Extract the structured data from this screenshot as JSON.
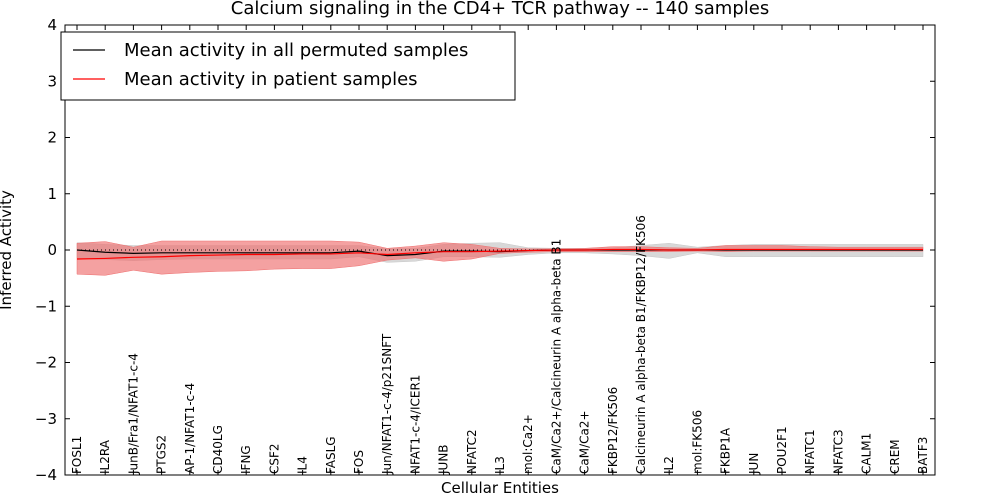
{
  "chart_data": {
    "type": "line",
    "title": "Calcium signaling in the CD4+ TCR pathway -- 140 samples",
    "xlabel": "Cellular Entities",
    "ylabel": "Inferred Activity",
    "ylim": [
      -4,
      4
    ],
    "yticks": [
      "−4",
      "−3",
      "−2",
      "−1",
      "0",
      "1",
      "2",
      "3",
      "4"
    ],
    "legend_position": "top-left",
    "categories": [
      "FOSL1",
      "IL2RA",
      "JunB/Fra1/NFAT1-c-4",
      "PTGS2",
      "AP-1/NFAT1-c-4",
      "CD40LG",
      "IFNG",
      "CSF2",
      "IL4",
      "FASLG",
      "FOS",
      "Jun/NFAT1-c-4/p21SNFT",
      "NFAT1-c-4/ICER1",
      "JUNB",
      "NFATC2",
      "IL3",
      "mol:Ca2+",
      "CaM/Ca2+/Calcineurin A alpha-beta B1",
      "CaM/Ca2+",
      "FKBP12/FK506",
      "Calcineurin A alpha-beta B1/FKBP12/FK506",
      "IL2",
      "mol:FK506",
      "FKBP1A",
      "JUN",
      "POU2F1",
      "NFATC1",
      "NFATC3",
      "CALM1",
      "CREM",
      "BATF3"
    ],
    "series": [
      {
        "name": "Mean activity in all permuted samples",
        "color": "#000000",
        "band_color": "#c8c8c8",
        "values": [
          0.0,
          -0.04,
          -0.06,
          -0.05,
          -0.05,
          -0.05,
          -0.05,
          -0.05,
          -0.05,
          -0.05,
          -0.02,
          -0.1,
          -0.08,
          -0.02,
          -0.02,
          -0.03,
          -0.01,
          0.0,
          0.0,
          0.0,
          0.0,
          0.0,
          0.0,
          0.0,
          0.0,
          0.0,
          0.0,
          0.0,
          0.0,
          0.0,
          0.0
        ],
        "lower": [
          -0.15,
          -0.17,
          -0.19,
          -0.17,
          -0.16,
          -0.16,
          -0.16,
          -0.16,
          -0.16,
          -0.16,
          -0.12,
          -0.22,
          -0.2,
          -0.12,
          -0.12,
          -0.13,
          -0.08,
          -0.05,
          -0.05,
          -0.07,
          -0.1,
          -0.15,
          -0.05,
          -0.12,
          -0.12,
          -0.12,
          -0.12,
          -0.12,
          -0.12,
          -0.12,
          -0.12
        ],
        "upper": [
          0.13,
          0.1,
          0.08,
          0.08,
          0.08,
          0.08,
          0.08,
          0.08,
          0.08,
          0.08,
          0.08,
          0.02,
          0.03,
          0.1,
          0.12,
          0.13,
          0.04,
          0.03,
          0.03,
          0.04,
          0.08,
          0.12,
          0.05,
          0.08,
          0.1,
          0.1,
          0.1,
          0.1,
          0.1,
          0.1,
          0.1
        ]
      },
      {
        "name": "Mean activity in patient samples",
        "color": "#ff0000",
        "band_color": "#ee6f6f",
        "values": [
          -0.16,
          -0.15,
          -0.13,
          -0.12,
          -0.1,
          -0.09,
          -0.08,
          -0.08,
          -0.07,
          -0.07,
          -0.05,
          -0.08,
          -0.05,
          -0.03,
          -0.03,
          -0.02,
          -0.01,
          0.0,
          0.0,
          0.01,
          0.01,
          0.0,
          0.0,
          0.01,
          0.01,
          0.01,
          0.01,
          0.01,
          0.01,
          0.01,
          0.01
        ],
        "lower": [
          -0.43,
          -0.45,
          -0.36,
          -0.43,
          -0.4,
          -0.38,
          -0.37,
          -0.34,
          -0.33,
          -0.33,
          -0.28,
          -0.18,
          -0.14,
          -0.2,
          -0.16,
          -0.06,
          -0.04,
          -0.03,
          -0.03,
          -0.03,
          -0.03,
          -0.03,
          -0.02,
          -0.03,
          -0.02,
          -0.02,
          -0.02,
          -0.02,
          -0.02,
          -0.02,
          -0.02
        ],
        "upper": [
          0.12,
          0.15,
          0.05,
          0.16,
          0.16,
          0.16,
          0.16,
          0.16,
          0.16,
          0.16,
          0.14,
          0.03,
          0.07,
          0.13,
          0.1,
          0.03,
          0.02,
          0.02,
          0.03,
          0.06,
          0.06,
          0.04,
          0.03,
          0.08,
          0.08,
          0.08,
          0.06,
          0.05,
          0.05,
          0.05,
          0.05
        ]
      }
    ]
  }
}
